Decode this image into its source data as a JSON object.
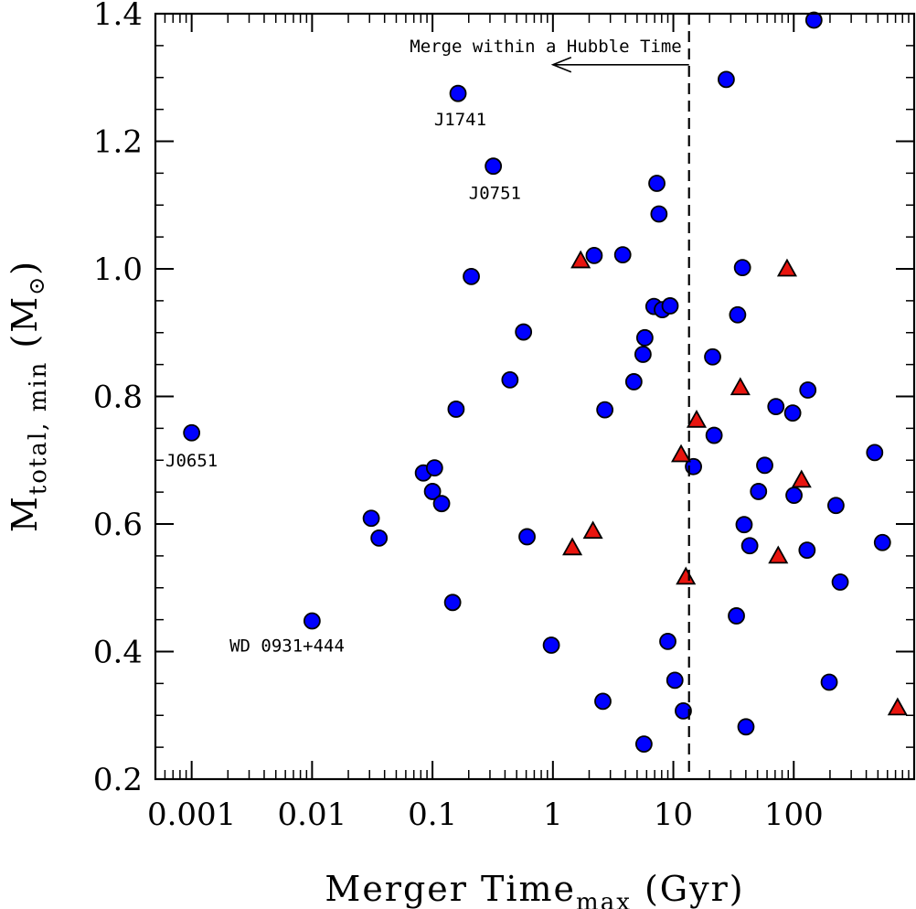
{
  "chart_data": {
    "type": "scatter",
    "xscale": "log",
    "xlim": [
      0.0005,
      1000
    ],
    "ylim": [
      0.2,
      1.4
    ],
    "xlabel": "Merger Time",
    "xlabel_sub": "max",
    "xlabel_unit": " (Gyr)",
    "ylabel": "M",
    "ylabel_sub": "total, min",
    "ylabel_unit_open": "(M",
    "ylabel_unit_symbol": "⊙",
    "ylabel_unit_close": ")",
    "x_tick_values": [
      0.001,
      0.01,
      0.1,
      1,
      10,
      100
    ],
    "x_tick_labels": [
      "0.001",
      "0.01",
      "0.1",
      "1",
      "10",
      "100"
    ],
    "y_tick_values": [
      0.2,
      0.4,
      0.6,
      0.8,
      1.0,
      1.2,
      1.4
    ],
    "y_tick_labels": [
      "0.2",
      "0.4",
      "0.6",
      "0.8",
      "1.0",
      "1.2",
      "1.4"
    ],
    "hubble_time_gyr": 13.5,
    "hubble_annotation": "Merge within a Hubble Time",
    "arrow_from_x": 13.5,
    "arrow_to_x": 1.0,
    "arrow_y": 1.32,
    "colors": {
      "circle_fill": "#0000ff",
      "triangle_fill": "#e8150f",
      "stroke": "#000000"
    },
    "labels": [
      {
        "text": "J1741",
        "x": 0.17,
        "y": 1.225
      },
      {
        "text": "J0751",
        "x": 0.33,
        "y": 1.11
      },
      {
        "text": "J0651",
        "x": 0.001,
        "y": 0.69
      },
      {
        "text": "WD 0931+444",
        "x": 0.0062,
        "y": 0.4
      }
    ],
    "series": [
      {
        "name": "circles",
        "marker": "circle",
        "points": [
          [
            0.001,
            0.743
          ],
          [
            0.01,
            0.448
          ],
          [
            0.031,
            0.609
          ],
          [
            0.036,
            0.578
          ],
          [
            0.084,
            0.68
          ],
          [
            0.1,
            0.651
          ],
          [
            0.104,
            0.688
          ],
          [
            0.119,
            0.632
          ],
          [
            0.147,
            0.477
          ],
          [
            0.157,
            0.78
          ],
          [
            0.163,
            1.275
          ],
          [
            0.21,
            0.988
          ],
          [
            0.32,
            1.161
          ],
          [
            0.44,
            0.826
          ],
          [
            0.57,
            0.901
          ],
          [
            0.61,
            0.58
          ],
          [
            0.97,
            0.41
          ],
          [
            2.2,
            1.021
          ],
          [
            2.6,
            0.322
          ],
          [
            2.7,
            0.779
          ],
          [
            3.8,
            1.022
          ],
          [
            4.7,
            0.823
          ],
          [
            5.6,
            0.866
          ],
          [
            5.8,
            0.892
          ],
          [
            5.7,
            0.255
          ],
          [
            6.9,
            0.941
          ],
          [
            7.3,
            1.134
          ],
          [
            7.6,
            1.086
          ],
          [
            8.1,
            0.936
          ],
          [
            9.0,
            0.416
          ],
          [
            9.4,
            0.942
          ],
          [
            10.3,
            0.355
          ],
          [
            12.1,
            0.307
          ],
          [
            14.7,
            0.69
          ],
          [
            21.2,
            0.862
          ],
          [
            21.8,
            0.739
          ],
          [
            27.5,
            1.297
          ],
          [
            33.4,
            0.456
          ],
          [
            34.2,
            0.928
          ],
          [
            37.5,
            1.002
          ],
          [
            38.7,
            0.599
          ],
          [
            40.1,
            0.282
          ],
          [
            43.1,
            0.566
          ],
          [
            51.0,
            0.651
          ],
          [
            57.4,
            0.692
          ],
          [
            71.1,
            0.784
          ],
          [
            98.0,
            0.774
          ],
          [
            100.5,
            0.645
          ],
          [
            129.0,
            0.559
          ],
          [
            131.0,
            0.81
          ],
          [
            147.0,
            1.39
          ],
          [
            197.0,
            0.352
          ],
          [
            224.0,
            0.629
          ],
          [
            243.0,
            0.509
          ],
          [
            470.0,
            0.712
          ],
          [
            545.0,
            0.571
          ]
        ]
      },
      {
        "name": "triangles",
        "marker": "triangle",
        "points": [
          [
            1.45,
            0.562
          ],
          [
            1.7,
            1.012
          ],
          [
            2.15,
            0.588
          ],
          [
            11.6,
            0.708
          ],
          [
            12.7,
            0.516
          ],
          [
            15.6,
            0.762
          ],
          [
            36.0,
            0.813
          ],
          [
            74.3,
            0.549
          ],
          [
            88.0,
            0.999
          ],
          [
            116.0,
            0.668
          ],
          [
            728.0,
            0.311
          ]
        ]
      }
    ]
  }
}
